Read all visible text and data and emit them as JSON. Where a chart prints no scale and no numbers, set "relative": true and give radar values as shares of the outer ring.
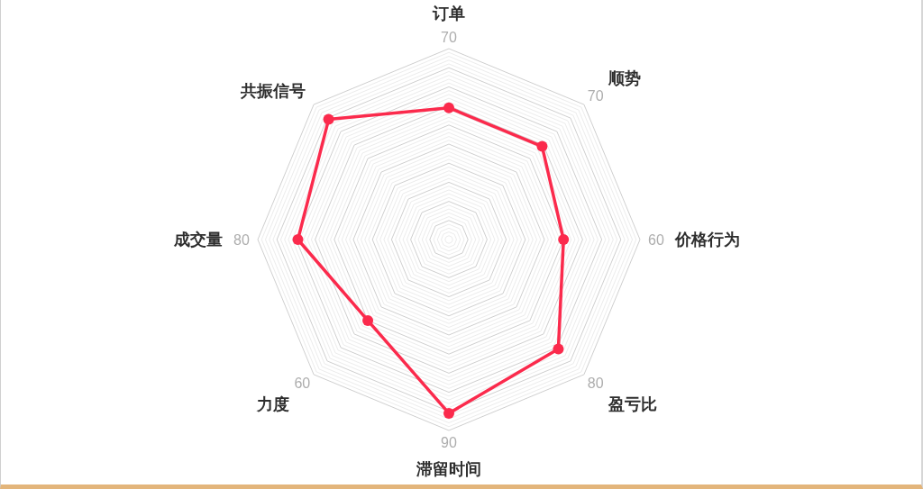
{
  "chart_data": {
    "type": "radar",
    "relative": true,
    "grid": true,
    "marker": "circle",
    "categories": [
      "订单",
      "顺势",
      "价格行为",
      "盈亏比",
      "滞留时间",
      "力度",
      "成交量",
      "共振信号"
    ],
    "series": [
      {
        "color": "#fb2a4c",
        "values": [
          0.69,
          0.69,
          0.6,
          0.81,
          0.91,
          0.6,
          0.79,
          0.89
        ]
      }
    ],
    "annotations": [
      {
        "text": "70",
        "x": "订单"
      },
      {
        "text": "70",
        "x": "顺势"
      },
      {
        "text": "60",
        "x": "价格行为"
      },
      {
        "text": "80",
        "x": "盈亏比"
      },
      {
        "text": "90",
        "x": "滞留时间"
      },
      {
        "text": "60",
        "x": "力度"
      },
      {
        "text": "80",
        "x": "成交量"
      }
    ]
  }
}
